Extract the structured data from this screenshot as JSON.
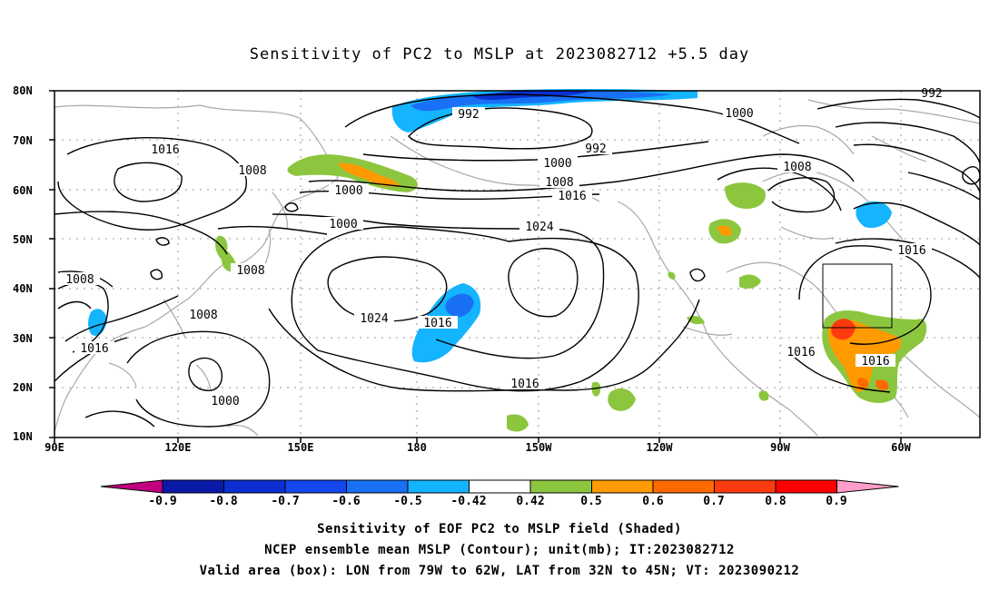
{
  "title": "Sensitivity of PC2 to MSLP at 2023082712 +5.5 day",
  "map": {
    "lat_labels": [
      "80N",
      "70N",
      "60N",
      "50N",
      "40N",
      "30N",
      "20N",
      "10N"
    ],
    "lon_labels": [
      "90E",
      "120E",
      "150E",
      "180",
      "150W",
      "120W",
      "90W",
      "60W"
    ],
    "contour_labels": [
      "992",
      "1000",
      "992",
      "1000",
      "1008",
      "1016",
      "1000",
      "1008",
      "1000",
      "1024",
      "1016",
      "1008",
      "1008",
      "1008",
      "1016",
      "1024",
      "1016",
      "1016",
      "1000",
      "1016",
      "1016",
      "1016",
      "992"
    ],
    "valid_box": {
      "lon_range": [
        "79W",
        "62W"
      ],
      "lat_range": [
        "32N",
        "45N"
      ]
    }
  },
  "colorbar": {
    "ticks": [
      "-0.9",
      "-0.8",
      "-0.7",
      "-0.6",
      "-0.5",
      "-0.42",
      "0.42",
      "0.5",
      "0.6",
      "0.7",
      "0.8",
      "0.9"
    ],
    "colors": [
      "#c0007f",
      "#0a1aa8",
      "#0b2fd0",
      "#1447ee",
      "#1a70f5",
      "#14b4ff",
      "#ffffff",
      "#8cc63f",
      "#ff9a00",
      "#ff6a00",
      "#ff3a10",
      "#ff0000",
      "#ff9ec8"
    ]
  },
  "footer": {
    "line1": "Sensitivity of EOF PC2 to MSLP field (Shaded)",
    "line2": "NCEP ensemble mean MSLP (Contour); unit(mb); IT:2023082712",
    "line3": "Valid area (box): LON from 79W to 62W, LAT from 32N to 45N; VT: 2023090212"
  }
}
